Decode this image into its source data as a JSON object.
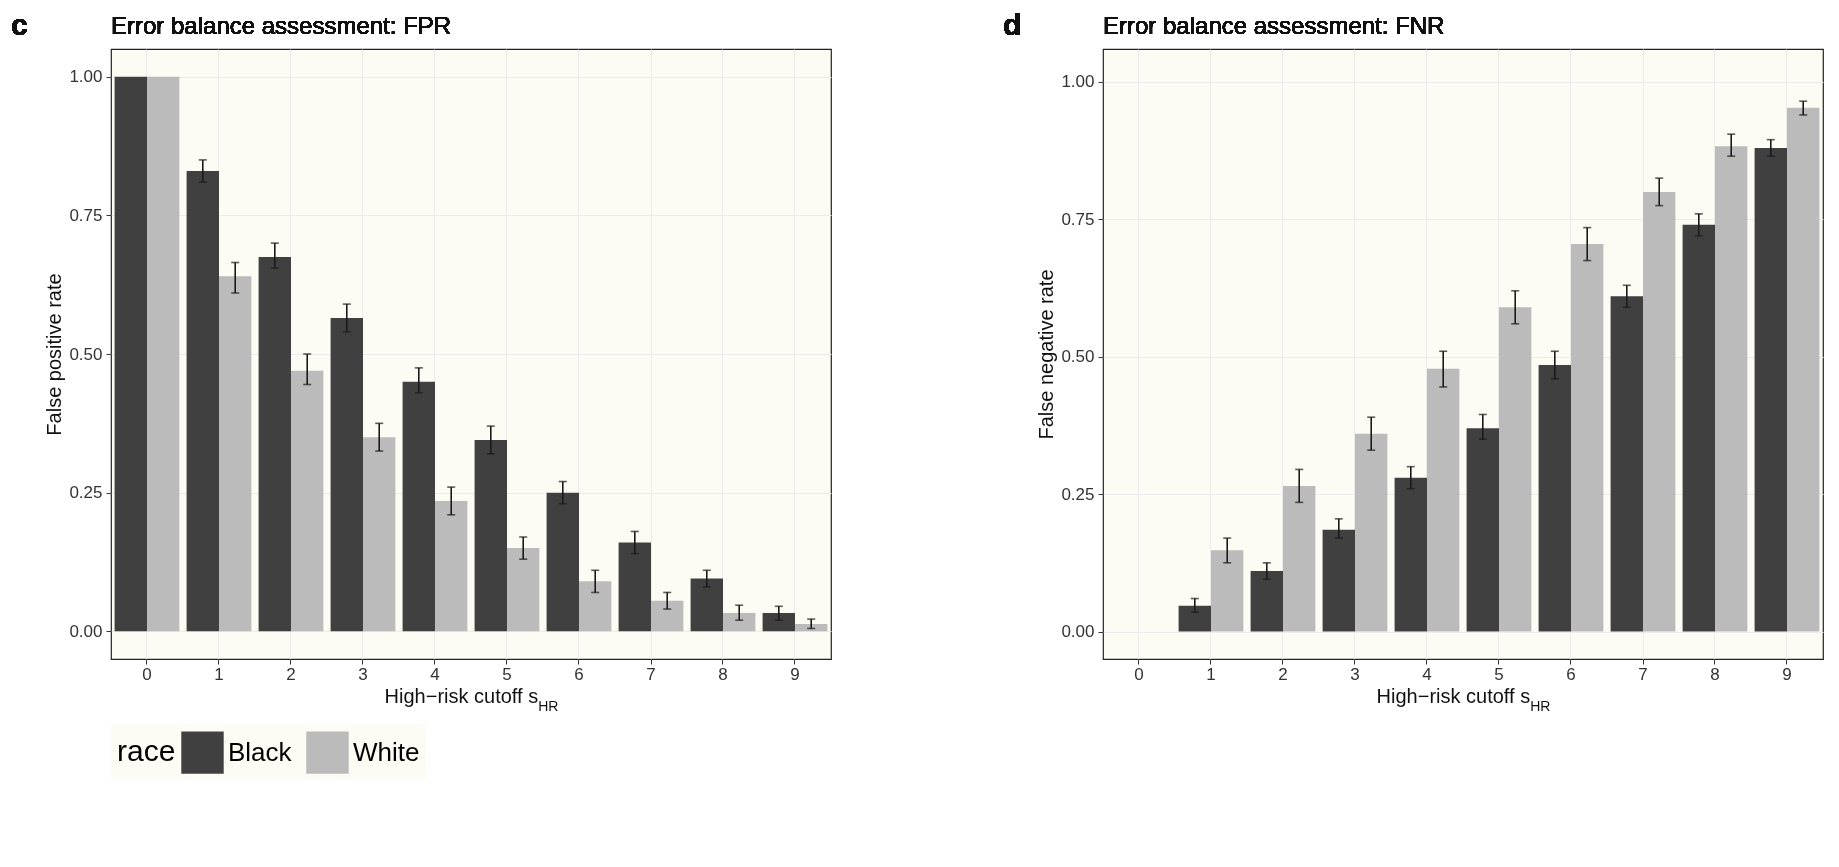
{
  "chart_data": [
    {
      "type": "bar",
      "title": "Error balance assessment: FPR",
      "xlabel": "High−risk cutoff s$_{HR}$",
      "ylabel": "False positive rate",
      "annotations": [
        "c"
      ],
      "legend_title": "race",
      "legend": "bottom",
      "grid": true,
      "categories": [
        "0",
        "1",
        "2",
        "3",
        "4",
        "5",
        "6",
        "7",
        "8",
        "9"
      ],
      "ylim": [
        -0.05,
        1.05
      ],
      "yticks": [
        {
          "value": 0,
          "label": "0.00"
        },
        {
          "value": 0.25,
          "label": "0.25"
        },
        {
          "value": 0.5,
          "label": "0.50"
        },
        {
          "value": 0.75,
          "label": "0.75"
        },
        {
          "value": 1,
          "label": "1.00"
        }
      ],
      "series": [
        {
          "name": "Black",
          "color": "#404040",
          "values": [
            1.0,
            0.83,
            0.675,
            0.565,
            0.45,
            0.345,
            0.25,
            0.16,
            0.095,
            0.033
          ],
          "errors": [
            null,
            [
              0.81,
              0.85
            ],
            [
              0.655,
              0.7
            ],
            [
              0.54,
              0.59
            ],
            [
              0.43,
              0.475
            ],
            [
              0.32,
              0.37
            ],
            [
              0.23,
              0.27
            ],
            [
              0.14,
              0.18
            ],
            [
              0.08,
              0.11
            ],
            [
              0.02,
              0.045
            ]
          ]
        },
        {
          "name": "White",
          "color": "#bbbbbb",
          "values": [
            1.0,
            0.64,
            0.47,
            0.35,
            0.235,
            0.15,
            0.09,
            0.055,
            0.033,
            0.013
          ],
          "errors": [
            null,
            [
              0.61,
              0.665
            ],
            [
              0.445,
              0.5
            ],
            [
              0.325,
              0.375
            ],
            [
              0.21,
              0.26
            ],
            [
              0.13,
              0.17
            ],
            [
              0.07,
              0.11
            ],
            [
              0.04,
              0.07
            ],
            [
              0.02,
              0.047
            ],
            [
              0.005,
              0.022
            ]
          ]
        }
      ]
    },
    {
      "type": "bar",
      "title": "Error balance assessment: FNR",
      "xlabel": "High−risk cutoff s$_{HR}$",
      "ylabel": "False negative rate",
      "annotations": [
        "d"
      ],
      "grid": true,
      "categories": [
        "0",
        "1",
        "2",
        "3",
        "4",
        "5",
        "6",
        "7",
        "8",
        "9"
      ],
      "ylim": [
        -0.05,
        1.06
      ],
      "yticks": [
        {
          "value": 0,
          "label": "0.00"
        },
        {
          "value": 0.25,
          "label": "0.25"
        },
        {
          "value": 0.5,
          "label": "0.50"
        },
        {
          "value": 0.75,
          "label": "0.75"
        },
        {
          "value": 1,
          "label": "1.00"
        }
      ],
      "series": [
        {
          "name": "Black",
          "color": "#404040",
          "values": [
            0,
            0.047,
            0.11,
            0.185,
            0.28,
            0.37,
            0.485,
            0.61,
            0.74,
            0.88
          ],
          "errors": [
            null,
            [
              0.035,
              0.06
            ],
            [
              0.095,
              0.125
            ],
            [
              0.17,
              0.205
            ],
            [
              0.26,
              0.3
            ],
            [
              0.35,
              0.395
            ],
            [
              0.46,
              0.51
            ],
            [
              0.59,
              0.63
            ],
            [
              0.72,
              0.76
            ],
            [
              0.865,
              0.895
            ]
          ]
        },
        {
          "name": "White",
          "color": "#bbbbbb",
          "values": [
            0,
            0.148,
            0.265,
            0.36,
            0.478,
            0.59,
            0.705,
            0.8,
            0.883,
            0.953
          ],
          "errors": [
            null,
            [
              0.125,
              0.17
            ],
            [
              0.235,
              0.295
            ],
            [
              0.33,
              0.39
            ],
            [
              0.445,
              0.51
            ],
            [
              0.56,
              0.62
            ],
            [
              0.675,
              0.735
            ],
            [
              0.775,
              0.825
            ],
            [
              0.865,
              0.905
            ],
            [
              0.94,
              0.965
            ]
          ]
        }
      ]
    }
  ]
}
